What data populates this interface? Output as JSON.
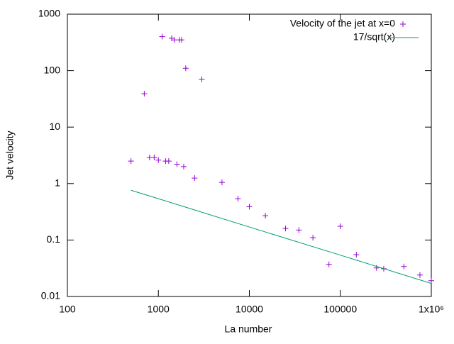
{
  "chart_data": {
    "type": "scatter",
    "x_label": "La number",
    "y_label": "Jet velocity",
    "xscale": "log",
    "yscale": "log",
    "xlim": [
      100,
      1000000
    ],
    "ylim": [
      0.01,
      1000
    ],
    "xticks": [
      100,
      1000,
      10000,
      100000,
      {
        "value": 1000000,
        "label": "1x10⁶"
      }
    ],
    "yticks": [
      0.01,
      0.1,
      1,
      10,
      100,
      1000
    ],
    "legend": "top-right",
    "series": [
      {
        "name": "Velocity of the jet at x=0",
        "type": "points",
        "color": "#9400d3",
        "x": [
          500,
          700,
          800,
          900,
          1000,
          1100,
          1200,
          1300,
          1400,
          1500,
          1600,
          1700,
          1800,
          1900,
          2000,
          2500,
          3000,
          5000,
          7500,
          10000,
          15000,
          25000,
          35000,
          50000,
          75000,
          100000,
          150000,
          250000,
          300000,
          500000,
          750000,
          1000000
        ],
        "values": [
          2.5,
          39,
          2.9,
          2.9,
          2.6,
          400,
          2.5,
          2.5,
          375,
          350,
          2.2,
          350,
          350,
          2.0,
          110,
          1.25,
          70,
          1.05,
          0.54,
          0.39,
          0.27,
          0.16,
          0.15,
          0.11,
          0.037,
          0.175,
          0.055,
          0.032,
          0.031,
          0.034,
          0.024,
          0.019
        ]
      },
      {
        "name": "17/sqrt(x)",
        "type": "line",
        "color": "#009e73",
        "x": [
          500,
          1000,
          10000,
          100000,
          1000000
        ],
        "values": [
          0.76,
          0.54,
          0.17,
          0.054,
          0.017
        ]
      }
    ]
  }
}
